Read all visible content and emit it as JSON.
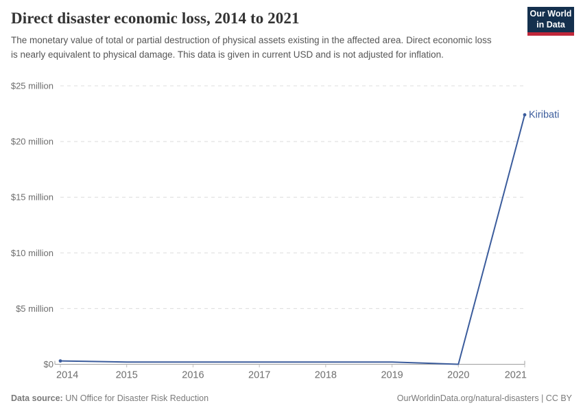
{
  "header": {
    "title": "Direct disaster economic loss, 2014 to 2021",
    "subtitle": "The monetary value of total or partial destruction of physical assets existing in the affected area. Direct economic loss is nearly equivalent to physical damage. This data is given in current USD and is not adjusted for inflation.",
    "logo": {
      "line1": "Our World",
      "line2": "in Data",
      "bg_color": "#14304e",
      "stripe_color": "#c0273a"
    }
  },
  "chart_data": {
    "type": "line",
    "title": "Direct disaster economic loss, 2014 to 2021",
    "x": [
      2014,
      2015,
      2016,
      2017,
      2018,
      2019,
      2020,
      2021
    ],
    "x_tick_labels": [
      "2014",
      "2015",
      "2016",
      "2017",
      "2018",
      "2019",
      "2020",
      "2021"
    ],
    "series": [
      {
        "name": "Kiribati",
        "color": "#3b5c9c",
        "values": [
          300000,
          200000,
          200000,
          200000,
          200000,
          200000,
          0,
          22400000
        ]
      }
    ],
    "ylim": [
      0,
      25000000
    ],
    "xlim": [
      2014,
      2021
    ],
    "y_ticks": [
      {
        "value": 0,
        "label": "$0"
      },
      {
        "value": 5000000,
        "label": "$5 million"
      },
      {
        "value": 10000000,
        "label": "$10 million"
      },
      {
        "value": 15000000,
        "label": "$15 million"
      },
      {
        "value": 20000000,
        "label": "$20 million"
      },
      {
        "value": 25000000,
        "label": "$25 million"
      }
    ],
    "grid": "horizontal-dashed",
    "legend": "series-label-at-line-end"
  },
  "footer": {
    "datasource_prefix": "Data source:",
    "datasource": " UN Office for Disaster Risk Reduction",
    "link": "OurWorldinData.org/natural-disasters",
    "separator": " | ",
    "license": "CC BY"
  },
  "colors": {
    "line": "#3b5c9c",
    "grid": "#dcdcdc",
    "axis": "#9e9e9e",
    "x_tick": "#bdbdbd",
    "tick_label": "#6e6e6e",
    "title": "#333333",
    "subtitle": "#555555",
    "footer": "#7a7a7a"
  }
}
